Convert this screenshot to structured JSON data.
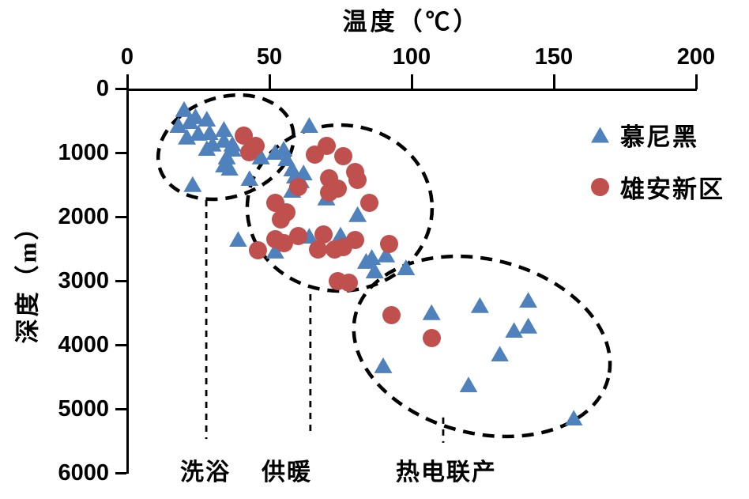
{
  "colors": {
    "munich": "#4F81BD",
    "xiongan": "#C0504D",
    "axis": "#000000",
    "annotation": "#000000"
  },
  "chart_data": {
    "type": "scatter",
    "title": "温度（℃）",
    "xlabel": "温度（℃）",
    "ylabel": "深度（m）",
    "grid": false,
    "x_axis": {
      "min": 0,
      "max": 200,
      "ticks": [
        0,
        50,
        100,
        150,
        200
      ],
      "position": "top"
    },
    "y_axis": {
      "min": 0,
      "max": 6000,
      "ticks": [
        0,
        1000,
        2000,
        3000,
        4000,
        5000,
        6000
      ],
      "inverted": true
    },
    "legend_position": "top-right",
    "series": [
      {
        "name": "慕尼黑",
        "marker": "triangle",
        "color": "#4F81BD",
        "points": [
          [
            20,
            320
          ],
          [
            18,
            570
          ],
          [
            22,
            510
          ],
          [
            24,
            430
          ],
          [
            28,
            470
          ],
          [
            21,
            750
          ],
          [
            25,
            690
          ],
          [
            29,
            680
          ],
          [
            34,
            630
          ],
          [
            34,
            800
          ],
          [
            37,
            860
          ],
          [
            30,
            860
          ],
          [
            28,
            930
          ],
          [
            37,
            940
          ],
          [
            35,
            1060
          ],
          [
            47,
            1060
          ],
          [
            34,
            1190
          ],
          [
            36,
            1240
          ],
          [
            43,
            1400
          ],
          [
            23,
            1490
          ],
          [
            52,
            990
          ],
          [
            55,
            940
          ],
          [
            56,
            1090
          ],
          [
            58,
            1250
          ],
          [
            59,
            1360
          ],
          [
            62,
            1310
          ],
          [
            61,
            1430
          ],
          [
            58,
            1580
          ],
          [
            64,
            570
          ],
          [
            70,
            1700
          ],
          [
            39,
            2350
          ],
          [
            52,
            2530
          ],
          [
            64,
            2300
          ],
          [
            75,
            2280
          ],
          [
            81,
            1960
          ],
          [
            84,
            2690
          ],
          [
            86,
            2630
          ],
          [
            91,
            2590
          ],
          [
            87,
            2840
          ],
          [
            98,
            2790
          ],
          [
            90,
            4320
          ],
          [
            107,
            3490
          ],
          [
            124,
            3380
          ],
          [
            141,
            3300
          ],
          [
            136,
            3770
          ],
          [
            141,
            3700
          ],
          [
            131,
            4140
          ],
          [
            120,
            4620
          ],
          [
            157,
            5140
          ]
        ]
      },
      {
        "name": "雄安新区",
        "marker": "circle",
        "color": "#C0504D",
        "points": [
          [
            41,
            740
          ],
          [
            45,
            900
          ],
          [
            43,
            990
          ],
          [
            66,
            1030
          ],
          [
            70,
            900
          ],
          [
            76,
            1060
          ],
          [
            80,
            1300
          ],
          [
            81,
            1430
          ],
          [
            71,
            1400
          ],
          [
            74,
            1560
          ],
          [
            71,
            1620
          ],
          [
            60,
            1540
          ],
          [
            52,
            1790
          ],
          [
            56,
            1930
          ],
          [
            54,
            2040
          ],
          [
            85,
            1790
          ],
          [
            52,
            2350
          ],
          [
            55,
            2410
          ],
          [
            46,
            2530
          ],
          [
            60,
            2300
          ],
          [
            69,
            2280
          ],
          [
            80,
            2360
          ],
          [
            67,
            2510
          ],
          [
            73,
            2510
          ],
          [
            76,
            2470
          ],
          [
            92,
            2420
          ],
          [
            74,
            3010
          ],
          [
            78,
            3030
          ],
          [
            93,
            3540
          ],
          [
            107,
            3900
          ]
        ]
      }
    ],
    "annotations": {
      "ellipses": [
        {
          "label": "洗浴",
          "t": 34.7,
          "d": 915,
          "rt": 24.4,
          "rd": 780,
          "rot": -18
        },
        {
          "label": "供暖",
          "t": 74.7,
          "d": 1865,
          "rt": 32.5,
          "rd": 1295,
          "rot": 0
        },
        {
          "label": "热电联产",
          "t": 124.7,
          "d": 4025,
          "rt": 45.8,
          "rd": 1358,
          "rot": 14
        }
      ],
      "leaders": [
        {
          "t": 27.8,
          "d1": 1740,
          "d2": 5470
        },
        {
          "t": 64.4,
          "d1": 3210,
          "d2": 5345
        },
        {
          "t": 111.1,
          "d1": 5135,
          "d2": 5530
        }
      ],
      "zone_labels": [
        {
          "text": "洗浴",
          "t": 27.5,
          "d": 5900
        },
        {
          "text": "供暖",
          "t": 56.1,
          "d": 5900
        },
        {
          "text": "热电联产",
          "t": 112.2,
          "d": 5900
        }
      ]
    }
  }
}
